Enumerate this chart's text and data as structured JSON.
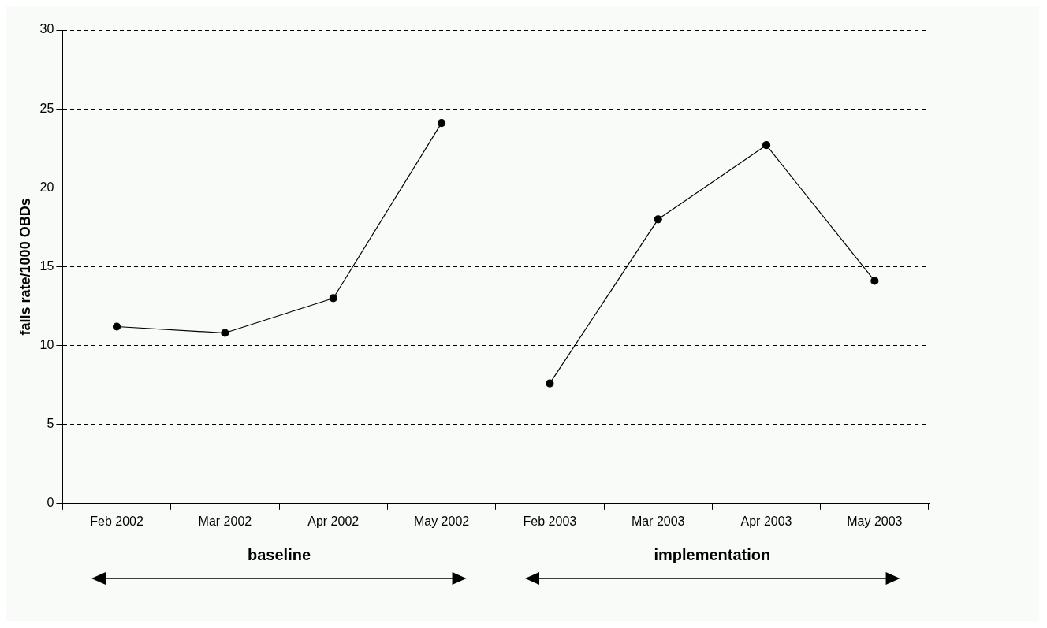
{
  "chart_data": {
    "type": "line",
    "ylabel": "falls rate/1000 OBDs",
    "categories": [
      "Feb 2002",
      "Mar 2002",
      "Apr 2002",
      "May 2002",
      "Feb 2003",
      "Mar 2003",
      "Apr 2003",
      "May 2003"
    ],
    "series": [
      {
        "color": "#000000",
        "values": [
          11.2,
          10.8,
          13.0,
          24.1,
          null,
          null,
          null,
          null
        ]
      },
      {
        "color": "#000000",
        "values": [
          null,
          null,
          null,
          null,
          7.6,
          18.0,
          22.7,
          14.1
        ]
      }
    ],
    "ylim": [
      0,
      30
    ],
    "yticks": [
      0,
      5,
      10,
      15,
      20,
      25,
      30
    ],
    "grid": "y",
    "marker": "circle",
    "line_style": "solid",
    "annotations": [
      "baseline",
      "implementation"
    ]
  }
}
